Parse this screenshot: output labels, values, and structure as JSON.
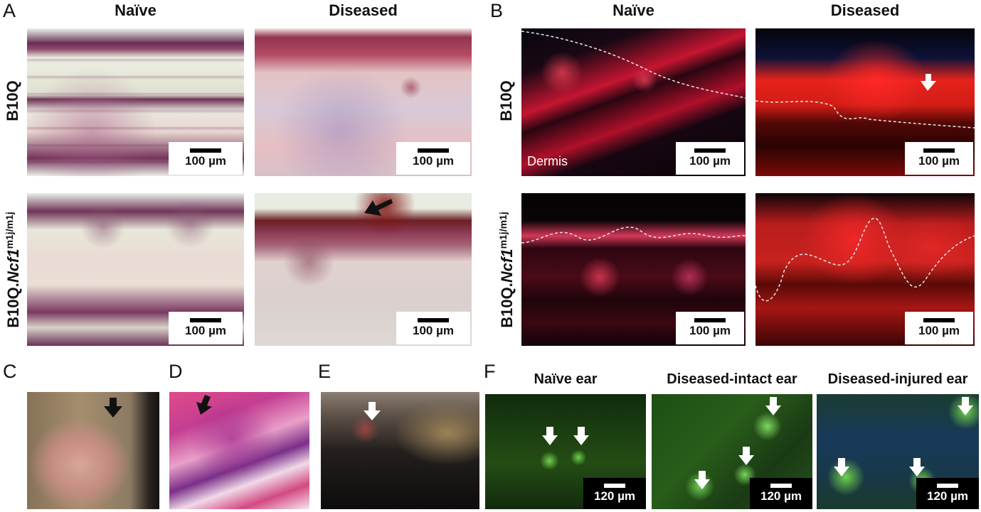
{
  "panel_letters": {
    "a": "A",
    "b": "B",
    "c": "C",
    "d": "D",
    "e": "E",
    "f": "F"
  },
  "column_headers": {
    "a_left": "Naïve",
    "a_right": "Diseased",
    "b_left": "Naïve",
    "b_right": "Diseased"
  },
  "row_headers": {
    "top": "B10Q",
    "bottom_prefix": "B10Q.",
    "bottom_gene": "Ncf1",
    "bottom_sup": "m1j/m1j"
  },
  "f_headers": {
    "left": "Naïve ear",
    "middle": "Diseased-intact ear",
    "right": "Diseased-injured ear"
  },
  "dermis_label": "Dermis",
  "scale_100": "100 µm",
  "scale_120": "120 µm",
  "colors": {
    "arrow_dark": "#111111",
    "arrow_light": "#ffffff",
    "dashed_line": "#e8e8e8"
  }
}
